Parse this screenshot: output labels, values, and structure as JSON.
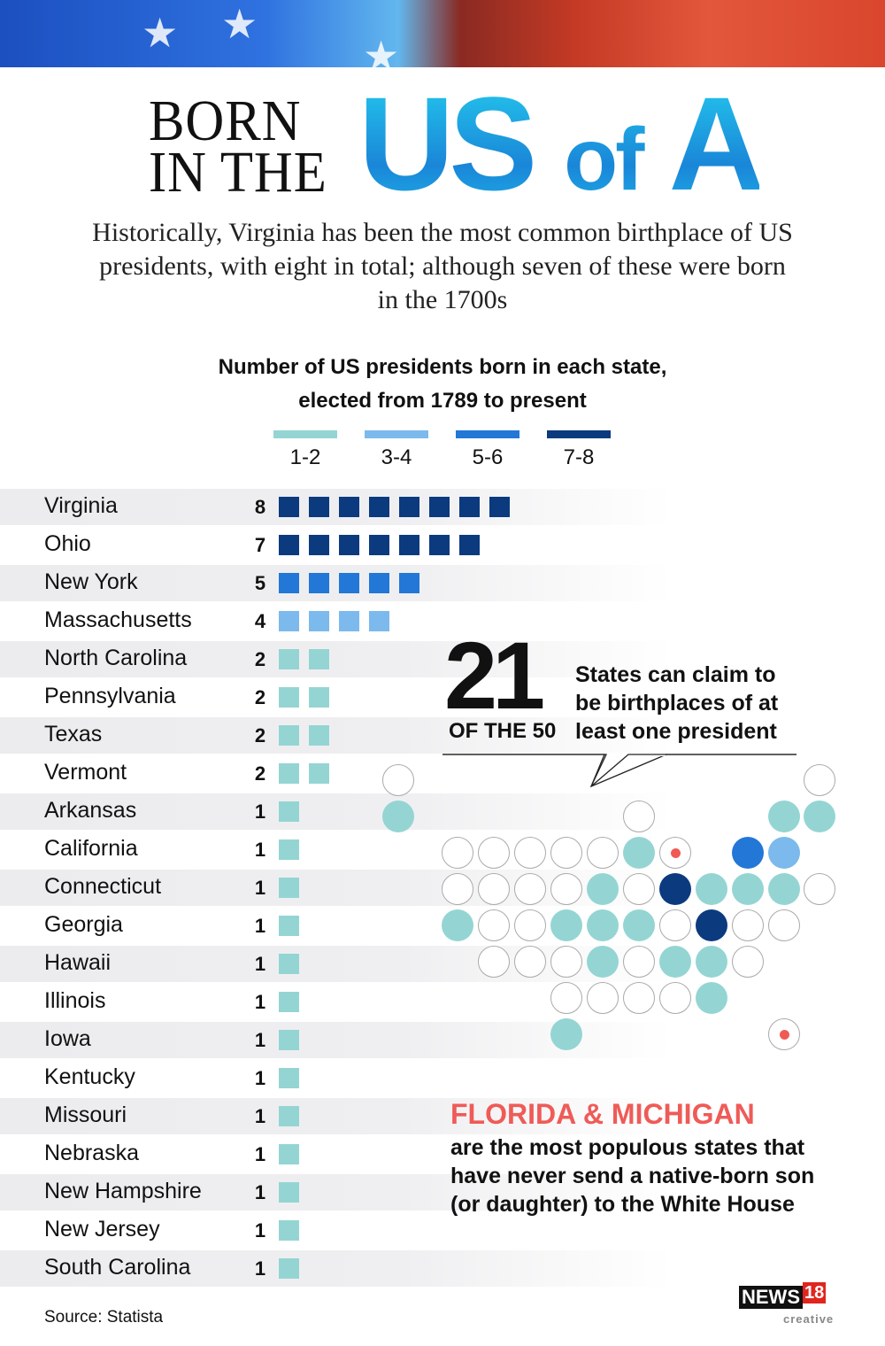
{
  "header": {
    "title_line1": "BORN",
    "title_line2": "IN THE",
    "title_us": "US",
    "title_of": "of",
    "title_a": "A"
  },
  "subtitle": "Historically, Virginia has been the most common birthplace of US presidents, with eight in total; although seven of these were born in the 1700s",
  "colors": {
    "c12": "#94d5d3",
    "c34": "#7cb9ec",
    "c56": "#2377d6",
    "c78": "#0b3a7e",
    "accent": "#ef5b57"
  },
  "chart_data": {
    "type": "bar",
    "title": "Number of US presidents born in each state, elected from 1789 to present",
    "title_line1": "Number of US presidents born in each state,",
    "title_line2": "elected from 1789 to present",
    "legend": [
      {
        "label": "1-2",
        "color": "#94d5d3"
      },
      {
        "label": "3-4",
        "color": "#7cb9ec"
      },
      {
        "label": "5-6",
        "color": "#2377d6"
      },
      {
        "label": "7-8",
        "color": "#0b3a7e"
      }
    ],
    "categories": [
      "Virginia",
      "Ohio",
      "New York",
      "Massachusetts",
      "North Carolina",
      "Pennsylvania",
      "Texas",
      "Vermont",
      "Arkansas",
      "California",
      "Connecticut",
      "Georgia",
      "Hawaii",
      "Illinois",
      "Iowa",
      "Kentucky",
      "Missouri",
      "Nebraska",
      "New Hampshire",
      "New Jersey",
      "South Carolina"
    ],
    "values": [
      8,
      7,
      5,
      4,
      2,
      2,
      2,
      2,
      1,
      1,
      1,
      1,
      1,
      1,
      1,
      1,
      1,
      1,
      1,
      1,
      1
    ]
  },
  "callout": {
    "big_number": "21",
    "of_the": "OF THE 50",
    "text_line1": "States can claim to",
    "text_line2": "be birthplaces of at",
    "text_line3": "least one president"
  },
  "populous": {
    "heading": "FLORIDA & MICHIGAN",
    "text": "are the most populous states that have never send a native-born son (or daughter) to the White House"
  },
  "source": "Source: Statista",
  "logo": {
    "name": "NEWS",
    "number": "18",
    "sub": "creative"
  }
}
